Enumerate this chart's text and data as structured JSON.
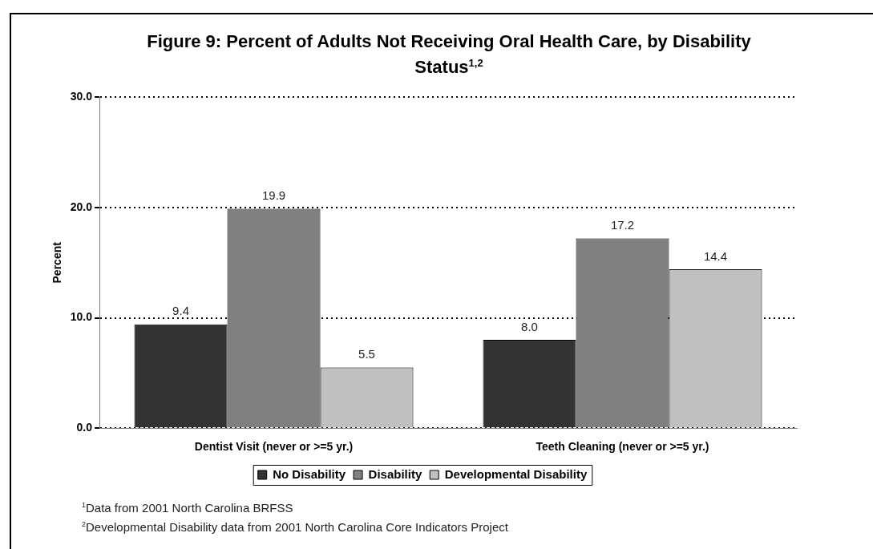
{
  "chart_data": {
    "type": "bar",
    "title": "Figure 9: Percent of Adults Not Receiving Oral Health Care, by Disability Status$^{1,2}$",
    "ylabel": "Percent",
    "categories": [
      "Dentist Visit (never or >=5 yr.)",
      "Teeth Cleaning (never or >=5 yr.)"
    ],
    "series": [
      {
        "name": "No Disability",
        "color": "#333333",
        "values": [
          9.4,
          8.0
        ],
        "value_labels": [
          "9.4",
          "8.0"
        ]
      },
      {
        "name": "Disability",
        "color": "#808080",
        "values": [
          19.9,
          17.2
        ],
        "value_labels": [
          "19.9",
          "17.2"
        ]
      },
      {
        "name": "Developmental Disability",
        "color": "#c0c0c0",
        "values": [
          5.5,
          14.4
        ],
        "value_labels": [
          "5.5",
          "14.4"
        ]
      }
    ],
    "ylim": [
      0,
      30
    ],
    "yticks": [
      {
        "value": 0,
        "label": "0.0"
      },
      {
        "value": 10,
        "label": "10.0"
      },
      {
        "value": 20,
        "label": "20.0"
      },
      {
        "value": 30,
        "label": "30.0"
      }
    ],
    "grid": "y",
    "legend": "bottom",
    "annotations": [
      "$^{1}$Data from 2001 North Carolina BRFSS",
      "$^{2}$Developmental Disability data from 2001 North Carolina Core Indicators Project"
    ]
  }
}
